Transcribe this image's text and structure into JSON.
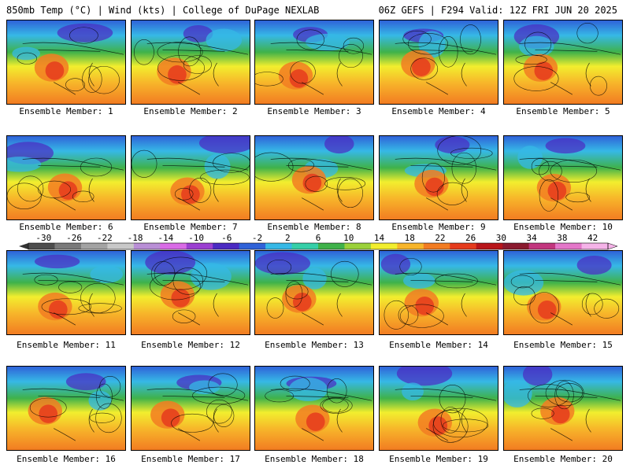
{
  "header": {
    "left": "850mb Temp (°C) | Wind (kts) | College of DuPage NEXLAB",
    "right": "06Z GEFS | F294 Valid: 12Z FRI JUN 20 2025"
  },
  "colorbar": {
    "ticks": [
      "-30",
      "-26",
      "-22",
      "-18",
      "-14",
      "-10",
      "-6",
      "-2",
      "2",
      "6",
      "10",
      "14",
      "18",
      "22",
      "26",
      "30",
      "34",
      "38",
      "42"
    ],
    "colors": [
      "#4d4d4d",
      "#7a7a7a",
      "#a3a3a3",
      "#c8c8c8",
      "#b98fd6",
      "#d96be6",
      "#9b3fd1",
      "#4b2ac2",
      "#2f62d8",
      "#36b8e6",
      "#35cfa8",
      "#3fb24a",
      "#9bd13a",
      "#f2ee2e",
      "#f7b52a",
      "#f27c22",
      "#e53b1d",
      "#b8151a",
      "#8a1a2e",
      "#c2367e",
      "#e477c9",
      "#f5b3e8"
    ]
  },
  "members": [
    {
      "label": "Ensemble Member: 1"
    },
    {
      "label": "Ensemble Member: 2"
    },
    {
      "label": "Ensemble Member: 3"
    },
    {
      "label": "Ensemble Member: 4"
    },
    {
      "label": "Ensemble Member: 5"
    },
    {
      "label": "Ensemble Member: 6"
    },
    {
      "label": "Ensemble Member: 7"
    },
    {
      "label": "Ensemble Member: 8"
    },
    {
      "label": "Ensemble Member: 9"
    },
    {
      "label": "Ensemble Member: 10"
    },
    {
      "label": "Ensemble Member: 11"
    },
    {
      "label": "Ensemble Member: 12"
    },
    {
      "label": "Ensemble Member: 13"
    },
    {
      "label": "Ensemble Member: 14"
    },
    {
      "label": "Ensemble Member: 15"
    },
    {
      "label": "Ensemble Member: 16"
    },
    {
      "label": "Ensemble Member: 17"
    },
    {
      "label": "Ensemble Member: 18"
    },
    {
      "label": "Ensemble Member: 19"
    },
    {
      "label": "Ensemble Member: 20"
    }
  ]
}
